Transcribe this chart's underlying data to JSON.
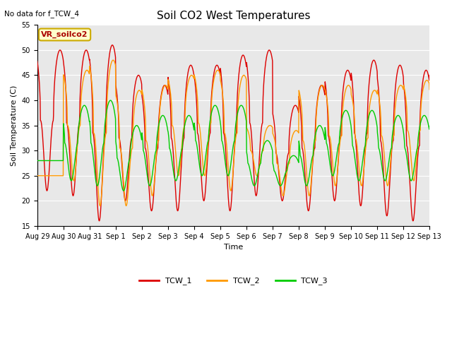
{
  "title": "Soil CO2 West Temperatures",
  "xlabel": "Time",
  "ylabel": "Soil Temperature (C)",
  "ylim": [
    15,
    55
  ],
  "xlim": [
    0,
    15
  ],
  "no_data_text": "No data for f_TCW_4",
  "annotation_text": "VR_soilco2",
  "background_color": "#e8e8e8",
  "tick_labels": [
    "Aug 29",
    "Aug 30",
    "Aug 31",
    "Sep 1",
    "Sep 2",
    "Sep 3",
    "Sep 4",
    "Sep 5",
    "Sep 6",
    "Sep 7",
    "Sep 8",
    "Sep 9",
    "Sep 10",
    "Sep 11",
    "Sep 12",
    "Sep 13"
  ],
  "yticks": [
    15,
    20,
    25,
    30,
    35,
    40,
    45,
    50,
    55
  ],
  "colors": {
    "TCW_1": "#dd0000",
    "TCW_2": "#ff9900",
    "TCW_3": "#00cc00"
  },
  "series_labels": [
    "TCW_1",
    "TCW_2",
    "TCW_3"
  ],
  "tcw1_peaks": [
    50,
    50,
    51,
    45,
    43,
    47,
    47,
    49,
    50,
    39,
    43,
    46,
    48,
    47,
    46,
    47
  ],
  "tcw1_troughs": [
    22,
    21,
    16,
    20,
    18,
    18,
    20,
    18,
    21,
    20,
    18,
    20,
    19,
    17,
    16,
    22
  ],
  "tcw2_peaks": [
    25,
    46,
    48,
    42,
    43,
    45,
    46,
    45,
    35,
    34,
    43,
    43,
    42,
    43,
    44,
    43
  ],
  "tcw2_troughs": [
    25,
    24,
    19,
    19,
    21,
    25,
    25,
    22,
    25,
    21,
    21,
    23,
    23,
    23,
    24,
    22
  ],
  "tcw3_peaks": [
    28,
    39,
    40,
    35,
    37,
    37,
    39,
    39,
    32,
    29,
    35,
    38,
    38,
    37,
    37,
    37
  ],
  "tcw3_troughs": [
    28,
    24,
    23,
    22,
    23,
    24,
    25,
    25,
    23,
    23,
    23,
    25,
    24,
    24,
    24,
    28
  ],
  "line_width": 1.0,
  "title_fontsize": 11,
  "axis_label_fontsize": 8,
  "tick_fontsize": 7,
  "legend_fontsize": 8
}
